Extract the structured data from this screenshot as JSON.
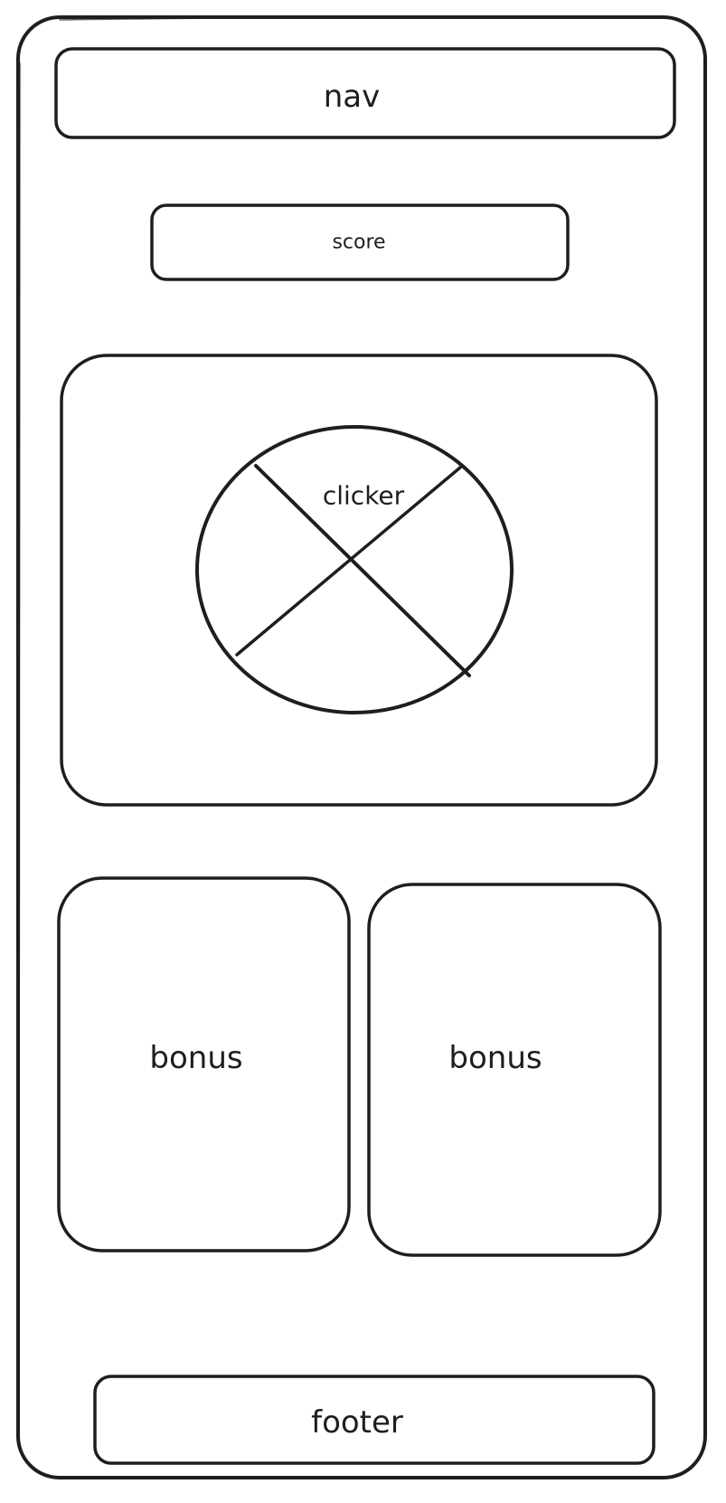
{
  "nav": {
    "label": "nav"
  },
  "score": {
    "label": "score"
  },
  "clicker": {
    "label": "clicker",
    "icon": "image-placeholder-icon"
  },
  "bonuses": [
    {
      "label": "bonus"
    },
    {
      "label": "bonus"
    }
  ],
  "footer": {
    "label": "footer"
  },
  "colors": {
    "stroke": "#1e1e1e",
    "background": "#ffffff"
  }
}
